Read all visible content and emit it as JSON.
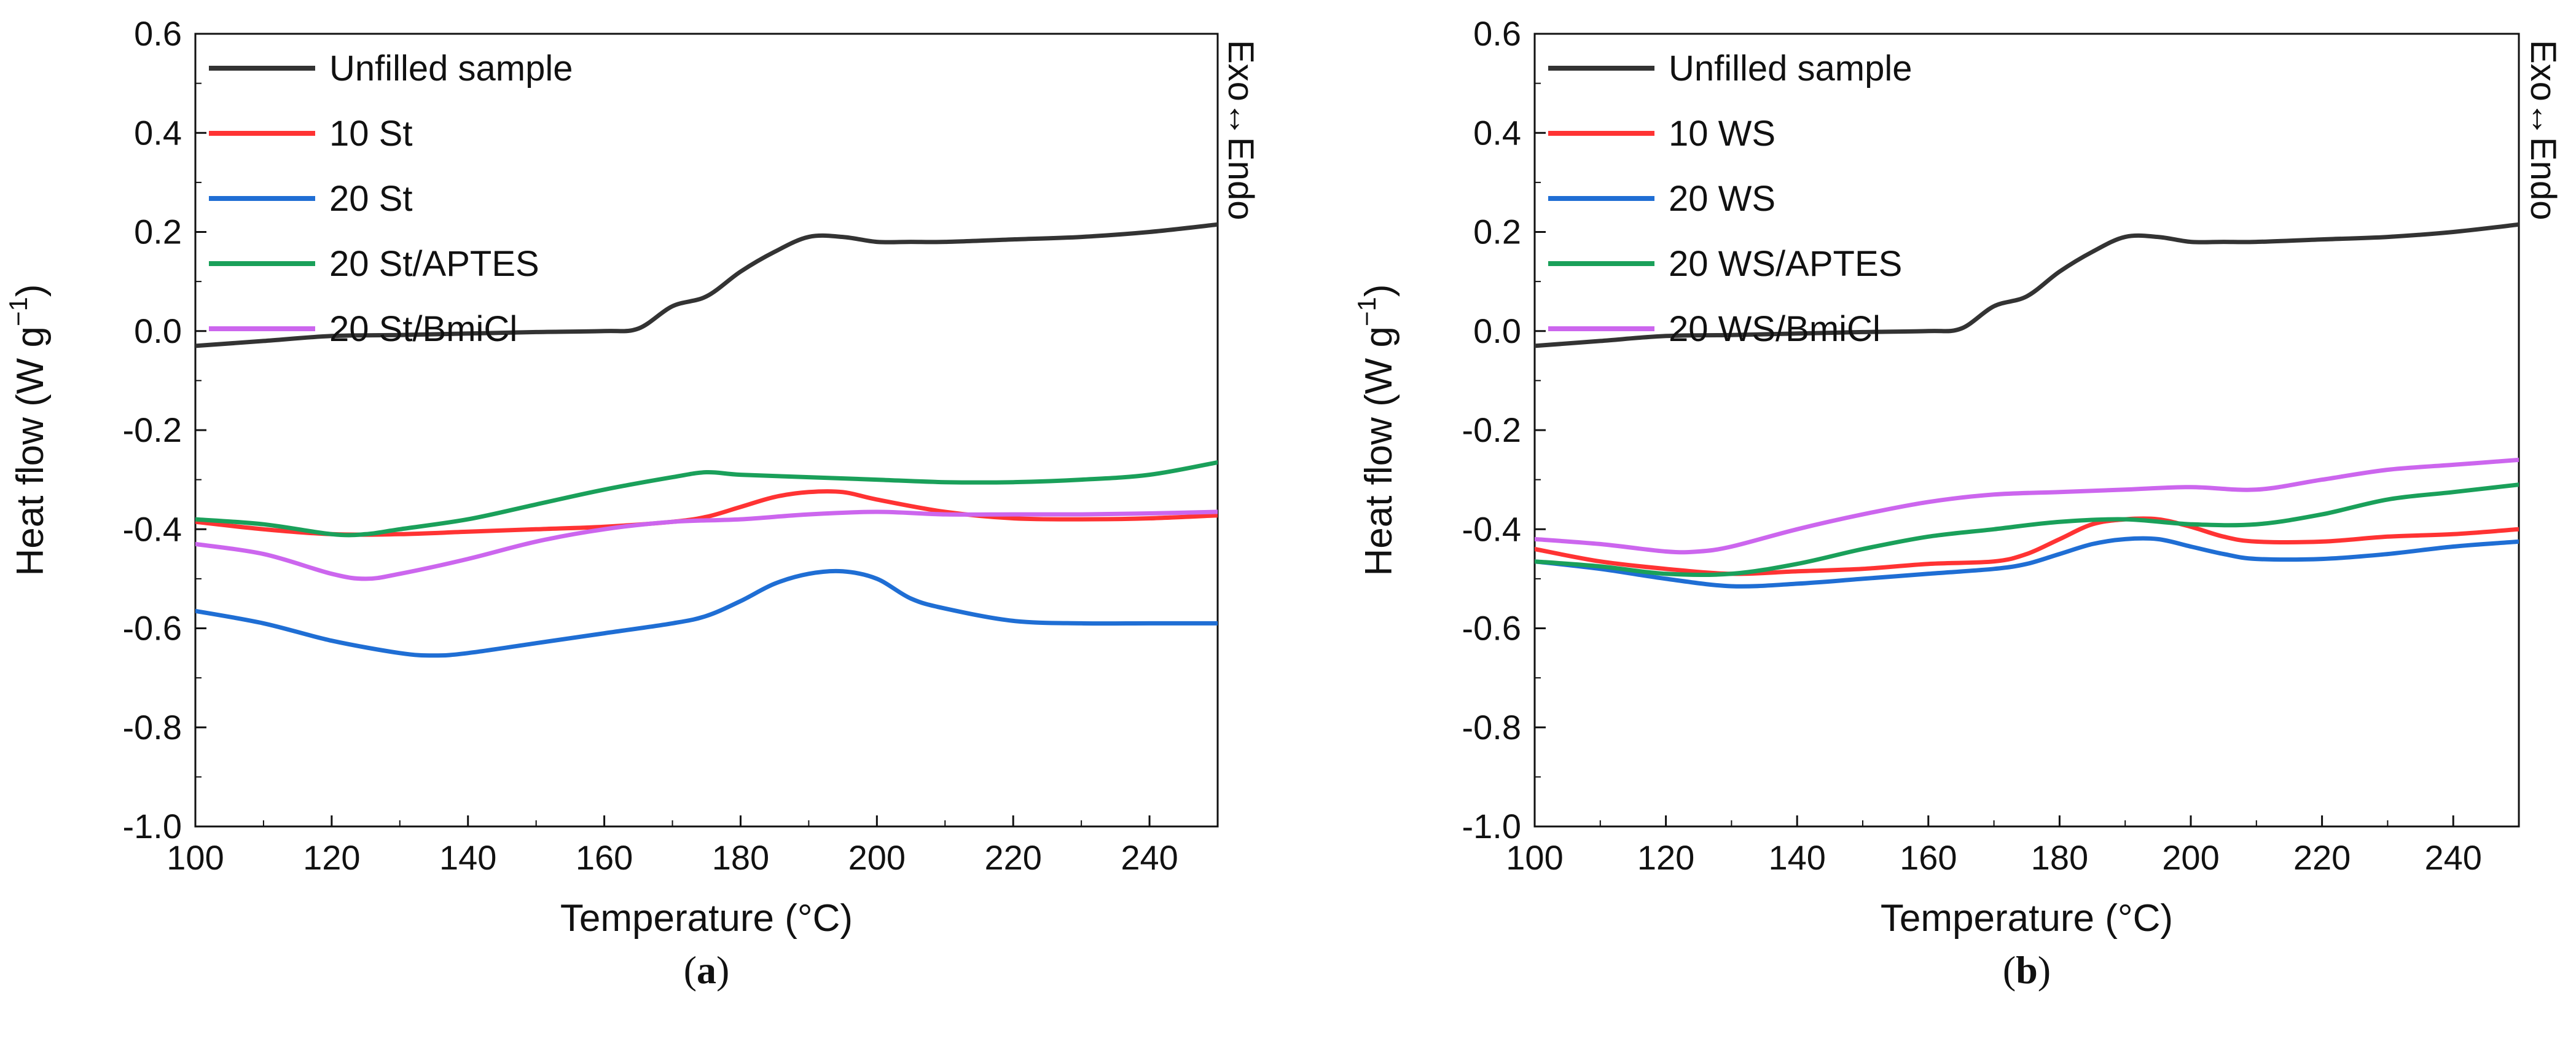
{
  "chart_data": [
    {
      "type": "line",
      "panel_label": "(a)",
      "xlabel": "Temperature (°C)",
      "ylabel_main": "Heat flow (W g",
      "ylabel_sup": "−1",
      "ylabel_close": ")",
      "side_note": "Exo↔Endo",
      "xlim": [
        100,
        250
      ],
      "ylim": [
        -1.0,
        0.6
      ],
      "xticks": [
        100,
        120,
        140,
        160,
        180,
        200,
        220,
        240
      ],
      "xtick_labels": [
        "100",
        "120",
        "140",
        "160",
        "180",
        "200",
        "220",
        "240"
      ],
      "yticks": [
        0.6,
        0.4,
        0.2,
        0.0,
        -0.2,
        -0.4,
        -0.6,
        -0.8,
        -1.0
      ],
      "ytick_labels": [
        "0.6",
        "0.4",
        "0.2",
        "0.0",
        "-0.2",
        "-0.4",
        "-0.6",
        "-0.8",
        "-1.0"
      ],
      "legend_position": "top-left",
      "series": [
        {
          "name": "Unfilled sample",
          "color": "#333333",
          "x": [
            100,
            110,
            120,
            130,
            140,
            150,
            160,
            165,
            170,
            175,
            180,
            185,
            190,
            195,
            200,
            205,
            210,
            220,
            230,
            240,
            250
          ],
          "y": [
            -0.03,
            -0.02,
            -0.01,
            -0.008,
            -0.005,
            -0.002,
            0.0,
            0.005,
            0.05,
            0.07,
            0.12,
            0.16,
            0.19,
            0.19,
            0.18,
            0.18,
            0.18,
            0.185,
            0.19,
            0.2,
            0.215
          ]
        },
        {
          "name": "10 St",
          "color": "#ff3333",
          "x": [
            100,
            110,
            120,
            130,
            140,
            150,
            160,
            170,
            175,
            180,
            185,
            190,
            195,
            200,
            210,
            220,
            230,
            240,
            250
          ],
          "y": [
            -0.385,
            -0.4,
            -0.41,
            -0.41,
            -0.405,
            -0.4,
            -0.395,
            -0.385,
            -0.375,
            -0.355,
            -0.335,
            -0.325,
            -0.325,
            -0.34,
            -0.365,
            -0.378,
            -0.38,
            -0.378,
            -0.372
          ]
        },
        {
          "name": "20 St",
          "color": "#1f6ed4",
          "x": [
            100,
            110,
            120,
            130,
            135,
            140,
            150,
            160,
            170,
            175,
            180,
            185,
            190,
            195,
            200,
            205,
            210,
            220,
            230,
            240,
            250
          ],
          "y": [
            -0.565,
            -0.59,
            -0.625,
            -0.65,
            -0.655,
            -0.65,
            -0.63,
            -0.61,
            -0.59,
            -0.575,
            -0.545,
            -0.51,
            -0.49,
            -0.485,
            -0.5,
            -0.54,
            -0.56,
            -0.585,
            -0.59,
            -0.59,
            -0.59
          ]
        },
        {
          "name": "20 St/APTES",
          "color": "#1aa05a",
          "x": [
            100,
            110,
            120,
            125,
            130,
            140,
            150,
            160,
            170,
            175,
            180,
            190,
            200,
            210,
            220,
            230,
            240,
            250
          ],
          "y": [
            -0.38,
            -0.39,
            -0.41,
            -0.41,
            -0.4,
            -0.38,
            -0.35,
            -0.32,
            -0.295,
            -0.285,
            -0.29,
            -0.295,
            -0.3,
            -0.305,
            -0.305,
            -0.3,
            -0.29,
            -0.265
          ]
        },
        {
          "name": "20 St/BmiCl",
          "color": "#cc66ee",
          "x": [
            100,
            110,
            120,
            125,
            130,
            140,
            150,
            160,
            170,
            180,
            190,
            200,
            210,
            220,
            230,
            240,
            250
          ],
          "y": [
            -0.43,
            -0.45,
            -0.49,
            -0.5,
            -0.49,
            -0.46,
            -0.425,
            -0.4,
            -0.385,
            -0.38,
            -0.37,
            -0.365,
            -0.37,
            -0.37,
            -0.37,
            -0.368,
            -0.365
          ]
        }
      ]
    },
    {
      "type": "line",
      "panel_label": "(b)",
      "xlabel": "Temperature (°C)",
      "ylabel_main": "Heat flow (W g",
      "ylabel_sup": "−1",
      "ylabel_close": ")",
      "side_note": "Exo↔Endo",
      "xlim": [
        100,
        250
      ],
      "ylim": [
        -1.0,
        0.6
      ],
      "xticks": [
        100,
        120,
        140,
        160,
        180,
        200,
        220,
        240
      ],
      "xtick_labels": [
        "100",
        "120",
        "140",
        "160",
        "180",
        "200",
        "220",
        "240"
      ],
      "yticks": [
        0.6,
        0.4,
        0.2,
        0.0,
        -0.2,
        -0.4,
        -0.6,
        -0.8,
        -1.0
      ],
      "ytick_labels": [
        "0.6",
        "0.4",
        "0.2",
        "0.0",
        "-0.2",
        "-0.4",
        "-0.6",
        "-0.8",
        "-1.0"
      ],
      "legend_position": "top-left",
      "series": [
        {
          "name": "Unfilled sample",
          "color": "#333333",
          "x": [
            100,
            110,
            120,
            130,
            140,
            150,
            160,
            165,
            170,
            175,
            180,
            185,
            190,
            195,
            200,
            205,
            210,
            220,
            230,
            240,
            250
          ],
          "y": [
            -0.03,
            -0.02,
            -0.01,
            -0.008,
            -0.005,
            -0.002,
            0.0,
            0.005,
            0.05,
            0.07,
            0.12,
            0.16,
            0.19,
            0.19,
            0.18,
            0.18,
            0.18,
            0.185,
            0.19,
            0.2,
            0.215
          ]
        },
        {
          "name": "10 WS",
          "color": "#ff3333",
          "x": [
            100,
            110,
            120,
            130,
            140,
            150,
            160,
            170,
            175,
            180,
            185,
            190,
            195,
            200,
            205,
            210,
            220,
            230,
            240,
            250
          ],
          "y": [
            -0.44,
            -0.465,
            -0.48,
            -0.49,
            -0.485,
            -0.48,
            -0.47,
            -0.465,
            -0.45,
            -0.42,
            -0.39,
            -0.38,
            -0.38,
            -0.395,
            -0.415,
            -0.425,
            -0.425,
            -0.415,
            -0.41,
            -0.4
          ]
        },
        {
          "name": "20 WS",
          "color": "#1f6ed4",
          "x": [
            100,
            110,
            120,
            130,
            140,
            150,
            160,
            170,
            175,
            180,
            185,
            190,
            195,
            200,
            205,
            210,
            220,
            230,
            240,
            250
          ],
          "y": [
            -0.465,
            -0.48,
            -0.5,
            -0.515,
            -0.51,
            -0.5,
            -0.49,
            -0.48,
            -0.47,
            -0.45,
            -0.43,
            -0.42,
            -0.42,
            -0.435,
            -0.45,
            -0.46,
            -0.46,
            -0.45,
            -0.435,
            -0.425
          ]
        },
        {
          "name": "20 WS/APTES",
          "color": "#1aa05a",
          "x": [
            100,
            110,
            120,
            130,
            140,
            150,
            160,
            170,
            180,
            190,
            200,
            210,
            220,
            230,
            240,
            250
          ],
          "y": [
            -0.465,
            -0.475,
            -0.49,
            -0.49,
            -0.47,
            -0.44,
            -0.415,
            -0.4,
            -0.385,
            -0.38,
            -0.39,
            -0.39,
            -0.37,
            -0.34,
            -0.325,
            -0.31
          ]
        },
        {
          "name": "20 WS/BmiCl",
          "color": "#cc66ee",
          "x": [
            100,
            110,
            120,
            125,
            130,
            140,
            150,
            160,
            170,
            180,
            190,
            200,
            210,
            220,
            230,
            240,
            250
          ],
          "y": [
            -0.42,
            -0.43,
            -0.445,
            -0.445,
            -0.435,
            -0.4,
            -0.37,
            -0.345,
            -0.33,
            -0.325,
            -0.32,
            -0.315,
            -0.32,
            -0.3,
            -0.28,
            -0.27,
            -0.26
          ]
        }
      ]
    }
  ]
}
